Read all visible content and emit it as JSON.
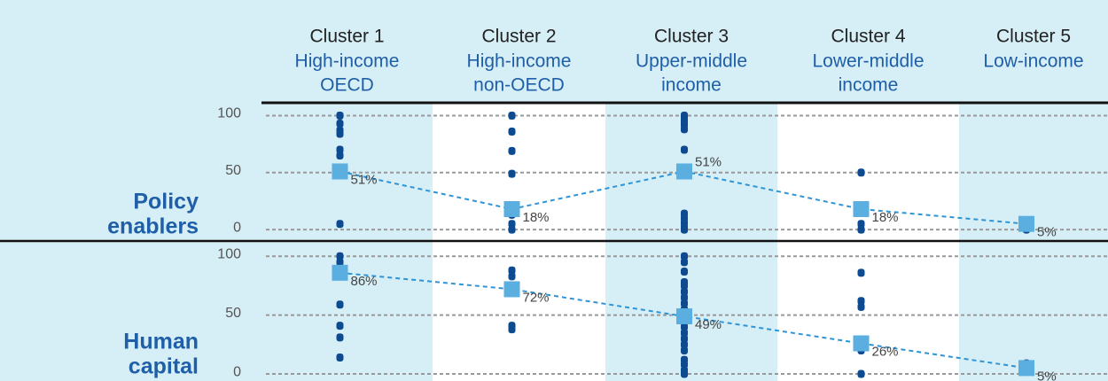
{
  "chart_data": {
    "type": "strip",
    "categories": [
      "Cluster 1",
      "Cluster 2",
      "Cluster 3",
      "Cluster 4",
      "Cluster 5"
    ],
    "category_subtitles": [
      [
        "High-income",
        "OECD"
      ],
      [
        "High-income",
        "non-OECD"
      ],
      [
        "Upper-middle",
        "income"
      ],
      [
        "Lower-middle",
        "income"
      ],
      [
        "Low-income"
      ]
    ],
    "dot_color": "#0d4a8f",
    "mean_color": "#5aaee0",
    "line_color": "#2e94d6",
    "grid": true,
    "panels": [
      {
        "name": [
          "Policy",
          "enablers"
        ],
        "ylim": [
          -10,
          112
        ],
        "yticks": [
          0,
          50,
          100
        ],
        "values": [
          51,
          18,
          51,
          18,
          5
        ],
        "value_labels": [
          "51%",
          "18%",
          "51%",
          "18%",
          "5%"
        ],
        "points": [
          [
            100,
            93,
            87,
            84,
            70,
            65,
            5
          ],
          [
            100,
            86,
            69,
            49,
            13,
            5,
            0
          ],
          [
            100,
            98,
            96,
            94,
            92,
            88,
            70,
            52,
            14,
            10,
            6,
            2,
            0
          ],
          [
            50,
            15,
            5,
            0
          ],
          [
            5,
            2,
            0
          ]
        ]
      },
      {
        "name": [
          "Human",
          "capital"
        ],
        "ylim": [
          -6,
          113
        ],
        "yticks": [
          0,
          50,
          100
        ],
        "values": [
          86,
          72,
          49,
          26,
          5
        ],
        "value_labels": [
          "86%",
          "72%",
          "49%",
          "26%",
          "5%"
        ],
        "points": [
          [
            100,
            95,
            90,
            59,
            41,
            31,
            14
          ],
          [
            88,
            83,
            41,
            38
          ],
          [
            100,
            95,
            87,
            78,
            75,
            70,
            65,
            60,
            55,
            50,
            45,
            40,
            35,
            30,
            25,
            20,
            12,
            8,
            3,
            0
          ],
          [
            86,
            62,
            57,
            20,
            0
          ],
          [
            9,
            5
          ]
        ]
      }
    ]
  }
}
